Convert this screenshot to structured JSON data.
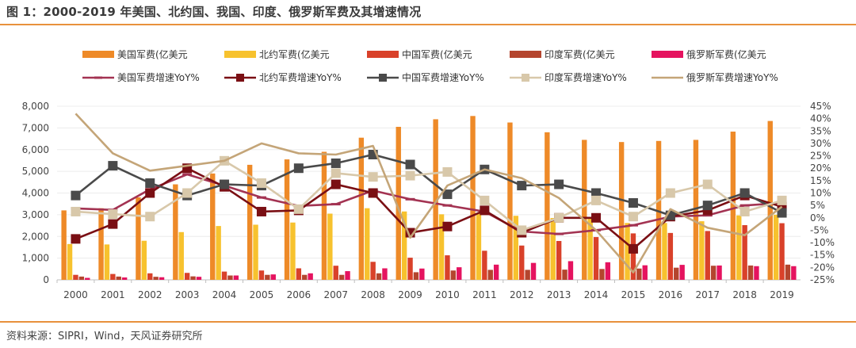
{
  "header": {
    "title": "图 1：2000-2019 年美国、北约国、我国、印度、俄罗斯军费及其增速情况"
  },
  "footer": {
    "source": "资料来源：SIPRI，Wind，天风证券研究所"
  },
  "colors": {
    "us_bar": "#EE8A28",
    "nato_bar": "#F7C22E",
    "china_bar": "#D9412A",
    "india_bar": "#B4452E",
    "russia_bar": "#E5135F",
    "us_line": "#A33352",
    "nato_line": "#7A0F14",
    "china_line": "#4A4A4A",
    "india_line": "#D8C8AA",
    "russia_line": "#C4A578",
    "accent": "#E8913C"
  },
  "chart_data": {
    "type": "bar",
    "categories": [
      "2000",
      "2001",
      "2002",
      "2003",
      "2004",
      "2005",
      "2006",
      "2007",
      "2008",
      "2009",
      "2010",
      "2011",
      "2012",
      "2013",
      "2014",
      "2015",
      "2016",
      "2017",
      "2018",
      "2019"
    ],
    "y_left": {
      "ylim": [
        0,
        8000
      ],
      "ticks": [
        0,
        1000,
        2000,
        3000,
        4000,
        5000,
        6000,
        7000,
        8000
      ],
      "tick_labels": [
        "0",
        "1,000",
        "2,000",
        "3,000",
        "4,000",
        "5,000",
        "6,000",
        "7,000",
        "8,000"
      ]
    },
    "y_right": {
      "ylim": [
        -25,
        45
      ],
      "ticks": [
        -25,
        -20,
        -15,
        -10,
        -5,
        0,
        5,
        10,
        15,
        20,
        25,
        30,
        35,
        40,
        45
      ],
      "tick_labels": [
        "-25%",
        "-20%",
        "-15%",
        "-10%",
        "-5%",
        "0%",
        "5%",
        "10%",
        "15%",
        "20%",
        "25%",
        "30%",
        "35%",
        "40%",
        "45%"
      ]
    },
    "bar_series": [
      {
        "name": "美国军费(亿美元",
        "color": "#EE8A28",
        "values": [
          3200,
          3300,
          3800,
          4400,
          4900,
          5300,
          5550,
          5900,
          6550,
          7050,
          7400,
          7550,
          7250,
          6800,
          6450,
          6350,
          6400,
          6450,
          6830,
          7320
        ]
      },
      {
        "name": "北约军费(亿美元",
        "color": "#F7C22E",
        "values": [
          1650,
          1630,
          1800,
          2200,
          2480,
          2540,
          2640,
          3050,
          3300,
          3150,
          3020,
          3050,
          2950,
          2850,
          2880,
          2620,
          2620,
          2700,
          2970,
          3000
        ]
      },
      {
        "name": "中国军费(亿美元",
        "color": "#D9412A",
        "values": [
          230,
          270,
          300,
          320,
          380,
          430,
          530,
          650,
          830,
          1020,
          1130,
          1340,
          1580,
          1790,
          1970,
          2140,
          2160,
          2250,
          2520,
          2610
        ]
      },
      {
        "name": "印度军费(亿美元",
        "color": "#B4452E",
        "values": [
          150,
          150,
          140,
          160,
          200,
          230,
          230,
          230,
          300,
          350,
          430,
          460,
          460,
          470,
          500,
          520,
          560,
          650,
          660,
          700
        ]
      },
      {
        "name": "俄罗斯军费(亿美元",
        "color": "#E5135F",
        "values": [
          90,
          110,
          120,
          140,
          200,
          250,
          300,
          400,
          530,
          520,
          580,
          700,
          780,
          860,
          810,
          670,
          690,
          660,
          630,
          630
        ]
      }
    ],
    "line_series": [
      {
        "name": "美国军费增速YoY%",
        "color": "#A33352",
        "marker": "dash",
        "values": [
          3.8,
          3.2,
          11.5,
          17.5,
          13.0,
          8.2,
          4.8,
          5.5,
          11.0,
          7.5,
          5.0,
          2.5,
          -5.5,
          -6.5,
          -5.0,
          -3.0,
          0.5,
          1.0,
          5.0,
          6.0
        ]
      },
      {
        "name": "北约军费增速YoY%",
        "color": "#7A0F14",
        "marker": "square",
        "values": [
          -8.5,
          -2.5,
          10.0,
          20.0,
          12.5,
          2.5,
          3.0,
          13.5,
          10.0,
          -6.0,
          -3.5,
          3.0,
          -6.0,
          0.0,
          0.0,
          -12.5,
          0.5,
          3.0,
          9.0,
          4.5
        ]
      },
      {
        "name": "中国军费增速YoY%",
        "color": "#4A4A4A",
        "marker": "square",
        "values": [
          9.0,
          21.0,
          14.0,
          9.0,
          13.5,
          13.0,
          20.0,
          22.0,
          25.5,
          21.5,
          9.5,
          19.5,
          13.0,
          13.5,
          10.0,
          6.0,
          1.0,
          5.0,
          10.0,
          2.0
        ]
      },
      {
        "name": "印度军费增速YoY%",
        "color": "#D8C8AA",
        "marker": "square",
        "values": [
          2.5,
          1.5,
          0.5,
          10.0,
          23.0,
          14.0,
          3.5,
          18.0,
          16.5,
          17.0,
          18.5,
          7.0,
          -5.0,
          0.0,
          7.0,
          0.5,
          10.0,
          13.5,
          2.5,
          7.0
        ]
      },
      {
        "name": "俄罗斯军费增速YoY%",
        "color": "#C4A578",
        "marker": "none",
        "values": [
          42.0,
          26.0,
          19.0,
          21.0,
          23.0,
          30.0,
          26.0,
          25.5,
          29.0,
          -8.0,
          13.0,
          19.5,
          16.0,
          8.0,
          -5.0,
          -22.0,
          3.5,
          -4.0,
          -7.0,
          4.5
        ]
      }
    ]
  }
}
